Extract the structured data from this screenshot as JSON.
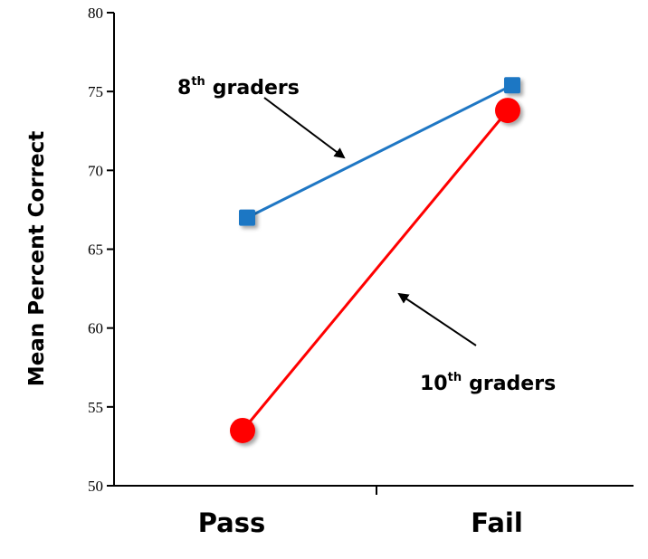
{
  "chart_data": {
    "type": "line",
    "categories": [
      "Pass",
      "Fail"
    ],
    "ylabel": "Mean Percent Correct",
    "ylim": [
      50,
      80
    ],
    "yticks": [
      50,
      55,
      60,
      65,
      70,
      75,
      80
    ],
    "grid": false,
    "legend": "none",
    "series": [
      {
        "name": "8th graders",
        "values": [
          67,
          75.4
        ],
        "color": "#1f77c4",
        "marker": "square"
      },
      {
        "name": "10th graders",
        "values": [
          53.5,
          73.8
        ],
        "color": "#ff0000",
        "marker": "circle"
      }
    ],
    "annotations": [
      {
        "base": "8",
        "sup": "th",
        "text": "graders",
        "series": 0
      },
      {
        "base": "10",
        "sup": "th",
        "text": "graders",
        "series": 1
      }
    ]
  }
}
